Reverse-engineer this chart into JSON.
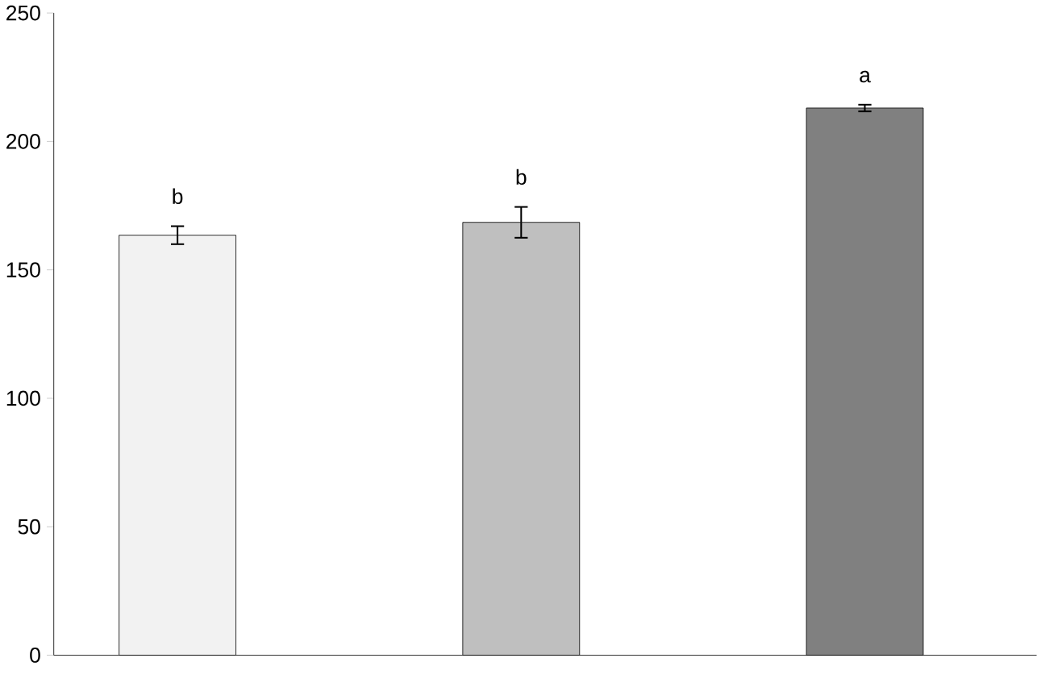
{
  "chart_data": {
    "type": "bar",
    "categories": [
      null,
      null,
      null
    ],
    "values": [
      163.5,
      168.5,
      213
    ],
    "errors": [
      3.5,
      6,
      1.3
    ],
    "colors": [
      "#f2f2f2",
      "#bfbfbf",
      "#808080"
    ],
    "ylim": [
      0,
      250
    ],
    "yticks": [
      0,
      50,
      100,
      150,
      200,
      250
    ],
    "annotations": [
      "b",
      "b",
      "a"
    ],
    "grid": false
  }
}
